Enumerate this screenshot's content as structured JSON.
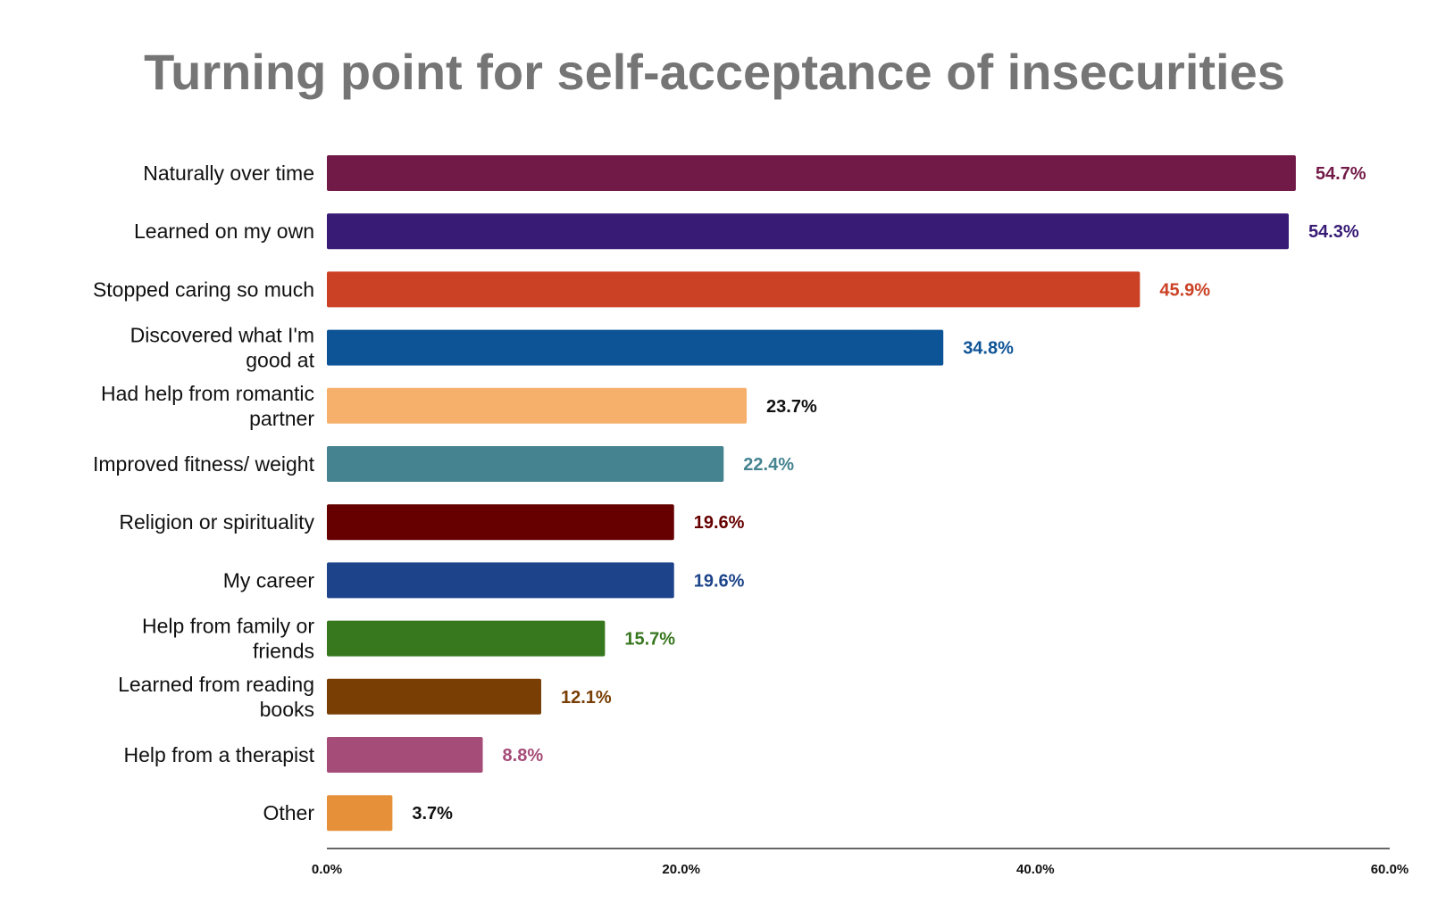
{
  "chart_data": {
    "type": "bar",
    "orientation": "horizontal",
    "title": "Turning point for self-acceptance of insecurities",
    "categories": [
      "Naturally over time",
      "Learned on my own",
      "Stopped caring so much",
      "Discovered what I'm good at",
      "Had help from romantic partner",
      "Improved fitness/ weight",
      "Religion or spirituality",
      "My career",
      "Help from family or friends",
      "Learned from reading books",
      "Help from a therapist",
      "Other"
    ],
    "category_lines": [
      [
        "Naturally over time"
      ],
      [
        "Learned on my own"
      ],
      [
        "Stopped caring so much"
      ],
      [
        "Discovered what I'm",
        "good at"
      ],
      [
        "Had help from romantic",
        "partner"
      ],
      [
        "Improved fitness/ weight"
      ],
      [
        "Religion or spirituality"
      ],
      [
        "My career"
      ],
      [
        "Help from family or",
        "friends"
      ],
      [
        "Learned from reading",
        "books"
      ],
      [
        "Help from a therapist"
      ],
      [
        "Other"
      ]
    ],
    "values": [
      54.7,
      54.3,
      45.9,
      34.8,
      23.7,
      22.4,
      19.6,
      19.6,
      15.7,
      12.1,
      8.8,
      3.7
    ],
    "value_labels": [
      "54.7%",
      "54.3%",
      "45.9%",
      "34.8%",
      "23.7%",
      "22.4%",
      "19.6%",
      "19.6%",
      "15.7%",
      "12.1%",
      "8.8%",
      "3.7%"
    ],
    "colors": [
      "#721a47",
      "#381b75",
      "#cb4125",
      "#0d5497",
      "#f6b06b",
      "#458390",
      "#660000",
      "#1d448a",
      "#37771e",
      "#783e04",
      "#a64c79",
      "#e69139"
    ],
    "label_colors": [
      "#721a47",
      "#381b75",
      "#cb4125",
      "#0d5497",
      "#111111",
      "#458390",
      "#660000",
      "#1d448a",
      "#37771e",
      "#783e04",
      "#a64c79",
      "#111111"
    ],
    "xlim": [
      0,
      60
    ],
    "xticks": [
      0,
      20,
      40,
      60
    ],
    "xtick_labels": [
      "0.0%",
      "20.0%",
      "40.0%",
      "60.0%"
    ],
    "xlabel": "",
    "ylabel": "",
    "grid": false,
    "legend": "none"
  }
}
